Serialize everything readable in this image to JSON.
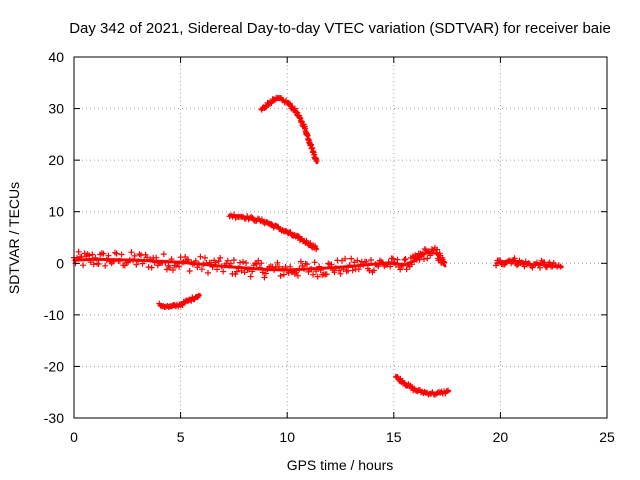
{
  "chart_data": {
    "type": "scatter",
    "title": "Day 342 of 2021, Sidereal Day-to-day VTEC variation (SDTVAR) for receiver baie",
    "xlabel": "GPS time / hours",
    "ylabel": "SDTVAR / TECUs",
    "xlim": [
      0,
      25
    ],
    "ylim": [
      -30,
      40
    ],
    "xticks": [
      0,
      5,
      10,
      15,
      20,
      25
    ],
    "yticks": [
      -30,
      -20,
      -10,
      0,
      10,
      20,
      30,
      40
    ],
    "xtick_labels": [
      "0",
      "5",
      "10",
      "15",
      "20",
      "25"
    ],
    "ytick_labels": [
      "-30",
      "-20",
      "-10",
      "0",
      "10",
      "20",
      "30",
      "40"
    ],
    "grid": true,
    "legend": false,
    "marker": "plus",
    "series_color": "#ff0000",
    "series": [
      {
        "name": "band-main-1",
        "band": 3.2,
        "points": [
          [
            0.0,
            0.6
          ],
          [
            1.0,
            0.8
          ],
          [
            2.0,
            0.7
          ],
          [
            3.0,
            0.6
          ],
          [
            4.0,
            0.4
          ],
          [
            5.0,
            0.2
          ],
          [
            6.0,
            -0.2
          ],
          [
            7.0,
            -0.6
          ],
          [
            8.0,
            -0.9
          ],
          [
            9.0,
            -1.2
          ],
          [
            10.0,
            -1.3
          ],
          [
            11.0,
            -1.1
          ],
          [
            12.0,
            -0.9
          ],
          [
            13.0,
            -0.6
          ],
          [
            14.0,
            -0.2
          ],
          [
            14.9,
            0.0
          ]
        ]
      },
      {
        "name": "band-main-2",
        "band": 2.2,
        "points": [
          [
            14.9,
            0.0
          ],
          [
            15.5,
            -0.3
          ],
          [
            16.0,
            0.5
          ],
          [
            16.5,
            2.0
          ],
          [
            17.0,
            2.0
          ],
          [
            17.4,
            -0.5
          ]
        ]
      },
      {
        "name": "band-late",
        "band": 1.4,
        "points": [
          [
            19.8,
            0.0
          ],
          [
            20.5,
            0.6
          ],
          [
            21.0,
            0.0
          ],
          [
            21.5,
            -0.3
          ],
          [
            22.0,
            -0.2
          ],
          [
            22.5,
            -0.6
          ],
          [
            22.9,
            -0.7
          ]
        ]
      },
      {
        "name": "arc-top",
        "band": 0.7,
        "points": [
          [
            8.8,
            29.8
          ],
          [
            9.2,
            31.3
          ],
          [
            9.6,
            31.9
          ],
          [
            10.0,
            31.2
          ],
          [
            10.4,
            29.5
          ],
          [
            10.8,
            26.5
          ],
          [
            11.1,
            23.0
          ],
          [
            11.4,
            19.5
          ]
        ]
      },
      {
        "name": "arc-mid",
        "band": 0.7,
        "points": [
          [
            7.3,
            9.3
          ],
          [
            8.0,
            9.0
          ],
          [
            9.0,
            8.0
          ],
          [
            10.0,
            6.0
          ],
          [
            11.0,
            3.9
          ],
          [
            11.4,
            2.8
          ]
        ]
      },
      {
        "name": "arc-neg10",
        "band": 0.6,
        "points": [
          [
            4.0,
            -8.1
          ],
          [
            4.5,
            -8.5
          ],
          [
            5.0,
            -8.0
          ],
          [
            5.5,
            -7.0
          ],
          [
            5.9,
            -6.1
          ]
        ]
      },
      {
        "name": "arc-neg25",
        "band": 0.6,
        "points": [
          [
            15.1,
            -22.0
          ],
          [
            15.6,
            -23.5
          ],
          [
            16.0,
            -24.6
          ],
          [
            16.5,
            -25.1
          ],
          [
            17.0,
            -25.3
          ],
          [
            17.6,
            -24.8
          ]
        ]
      }
    ]
  }
}
